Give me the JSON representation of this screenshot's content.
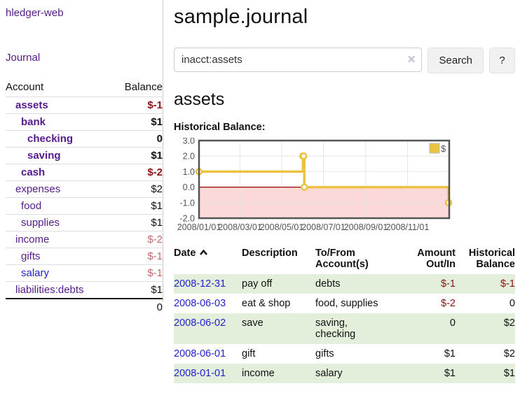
{
  "app": {
    "brand": "hledger-web",
    "nav_journal": "Journal"
  },
  "sidebar": {
    "header": {
      "account": "Account",
      "balance": "Balance"
    },
    "accounts": [
      {
        "name": "assets",
        "indent": 1,
        "bold": true,
        "balance": "$-1",
        "balance_class": "neg-strong"
      },
      {
        "name": "bank",
        "indent": 2,
        "bold": true,
        "balance": "$1",
        "balance_class": "plain"
      },
      {
        "name": "checking",
        "indent": 3,
        "bold": true,
        "balance": "0",
        "balance_class": "plain"
      },
      {
        "name": "saving",
        "indent": 3,
        "bold": true,
        "balance": "$1",
        "balance_class": "plain"
      },
      {
        "name": "cash",
        "indent": 2,
        "bold": true,
        "balance": "$-2",
        "balance_class": "neg-strong"
      },
      {
        "name": "expenses",
        "indent": 1,
        "bold": false,
        "balance": "$2",
        "balance_class": "plain"
      },
      {
        "name": "food",
        "indent": 2,
        "bold": false,
        "balance": "$1",
        "balance_class": "plain"
      },
      {
        "name": "supplies",
        "indent": 2,
        "bold": false,
        "balance": "$1",
        "balance_class": "plain"
      },
      {
        "name": "income",
        "indent": 1,
        "bold": false,
        "balance": "$-2",
        "balance_class": "neg-soft"
      },
      {
        "name": "gifts",
        "indent": 2,
        "bold": false,
        "balance": "$-1",
        "balance_class": "neg-soft"
      },
      {
        "name": "salary",
        "indent": 2,
        "bold": false,
        "balance": "$-1",
        "balance_class": "neg-soft",
        "link_color": "blue"
      },
      {
        "name": "liabilities:debts",
        "indent": 1,
        "bold": false,
        "balance": "$1",
        "balance_class": "plain"
      }
    ],
    "total": "0"
  },
  "header": {
    "title": "sample.journal"
  },
  "search": {
    "value": "inacct:assets",
    "clear_icon": "✕",
    "button_label": "Search",
    "help_label": "?"
  },
  "main": {
    "account_title": "assets",
    "chart_label": "Historical Balance:"
  },
  "chart_data": {
    "type": "line",
    "title": "Historical Balance",
    "step": true,
    "series": [
      {
        "name": "$",
        "color": "#edc240",
        "points": [
          [
            "2008-01-01",
            1
          ],
          [
            "2008-06-01",
            2
          ],
          [
            "2008-06-02",
            2
          ],
          [
            "2008-06-03",
            0
          ],
          [
            "2008-12-31",
            -1
          ]
        ]
      }
    ],
    "x_range": [
      "2008-01-01",
      "2009-01-01"
    ],
    "ylim": [
      -2,
      3
    ],
    "y_ticks": [
      3,
      2,
      1,
      0,
      -1,
      -2
    ],
    "y_tick_labels": [
      "3.0",
      "2.0",
      "1.0",
      "0.0",
      "-1.0",
      "-2.0"
    ],
    "x_tick_labels": [
      "2008/01/01",
      "2008/03/01",
      "2008/05/01",
      "2008/07/01",
      "2008/09/01",
      "2008/11/01"
    ],
    "legend": {
      "label": "$",
      "position": "top-right"
    },
    "grid": true,
    "colors": {
      "grid": "#e5e5e5",
      "border": "#545454",
      "tick_text": "#545454",
      "zero_line": "#990000",
      "negative_fill": "#fbd9d9"
    }
  },
  "register": {
    "headers": [
      "Date",
      "Description",
      "To/From Account(s)",
      "Amount Out/In",
      "Historical Balance"
    ],
    "rows": [
      {
        "date": "2008-12-31",
        "description": "pay off",
        "accounts": "debts",
        "amount": "$-1",
        "amount_class": "neg-strong",
        "balance": "$-1",
        "balance_class": "neg-strong",
        "shaded": true
      },
      {
        "date": "2008-06-03",
        "description": "eat & shop",
        "accounts": "food, supplies",
        "amount": "$-2",
        "amount_class": "neg-strong",
        "balance": "0",
        "balance_class": "plain",
        "shaded": false
      },
      {
        "date": "2008-06-02",
        "description": "save",
        "accounts": "saving,\nchecking",
        "amount": "0",
        "amount_class": "plain",
        "balance": "$2",
        "balance_class": "plain",
        "shaded": true
      },
      {
        "date": "2008-06-01",
        "description": "gift",
        "accounts": "gifts",
        "amount": "$1",
        "amount_class": "plain",
        "balance": "$2",
        "balance_class": "plain",
        "shaded": false
      },
      {
        "date": "2008-01-01",
        "description": "income",
        "accounts": "salary",
        "amount": "$1",
        "amount_class": "plain",
        "balance": "$1",
        "balance_class": "plain",
        "shaded": true
      }
    ]
  },
  "colors": {
    "link_purple": "#551a8b",
    "link_blue": "#2323cc",
    "negative_strong": "#8b1212",
    "negative_soft": "#c26a6a",
    "row_stripe_green": "#e3efda",
    "chart_line_gold": "#edc240"
  }
}
